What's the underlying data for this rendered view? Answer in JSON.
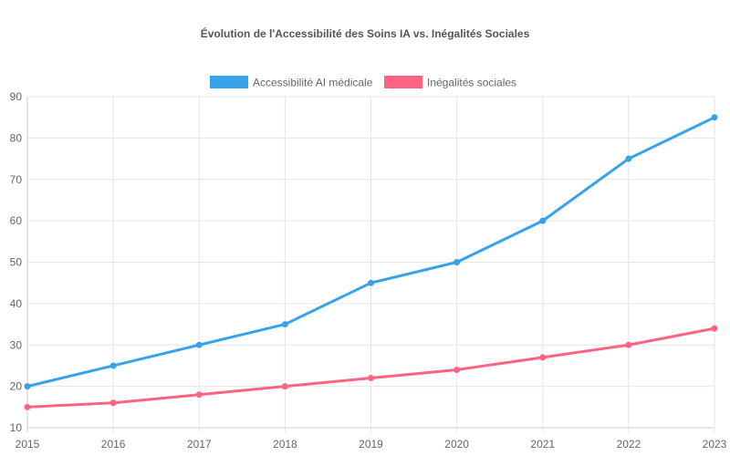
{
  "chart_data": {
    "type": "line",
    "title": "Évolution de l'Accessibilité des Soins IA vs. Inégalités Sociales",
    "xlabel": "",
    "ylabel": "",
    "categories": [
      "2015",
      "2016",
      "2017",
      "2018",
      "2019",
      "2020",
      "2021",
      "2022",
      "2023"
    ],
    "ylim": [
      10,
      90
    ],
    "yticks": [
      "10",
      "20",
      "30",
      "40",
      "50",
      "60",
      "70",
      "80",
      "90"
    ],
    "grid": true,
    "legend_position": "top",
    "series": [
      {
        "name": "Accessibilité AI médicale",
        "color": "#36a2eb",
        "values": [
          20,
          25,
          30,
          35,
          45,
          50,
          60,
          75,
          85
        ]
      },
      {
        "name": "Inégalités sociales",
        "color": "#ff6384",
        "values": [
          15,
          16,
          18,
          20,
          22,
          24,
          27,
          30,
          34
        ]
      }
    ]
  }
}
